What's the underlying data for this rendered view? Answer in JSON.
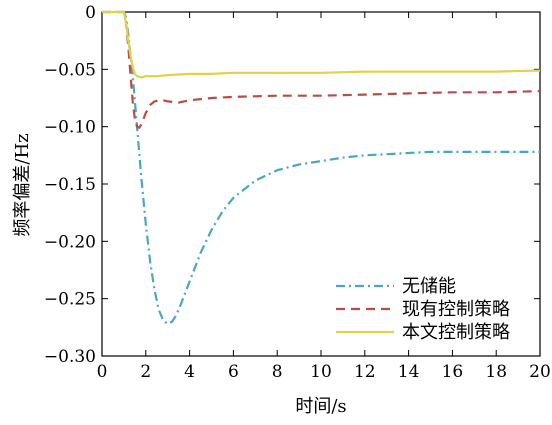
{
  "chart_data": {
    "type": "line",
    "title": "",
    "xlabel": "时间/s",
    "ylabel": "频率偏差/Hz",
    "xlim": [
      0,
      20
    ],
    "ylim": [
      -0.3,
      0
    ],
    "xticks": [
      0,
      2,
      4,
      6,
      8,
      10,
      12,
      14,
      16,
      18,
      20
    ],
    "xtick_labels": [
      "0",
      "2",
      "4",
      "6",
      "8",
      "10",
      "12",
      "14",
      "16",
      "18",
      "20"
    ],
    "yticks": [
      0,
      -0.05,
      -0.1,
      -0.15,
      -0.2,
      -0.25,
      -0.3
    ],
    "ytick_labels": [
      "0",
      "−0.05",
      "−0.10",
      "−0.15",
      "−0.20",
      "−0.25",
      "−0.30"
    ],
    "grid": false,
    "legend_position": "bottom-right",
    "series": [
      {
        "name": "无储能",
        "color": "#4aa6c2",
        "dash": "dash-dot",
        "x": [
          0,
          0.9,
          1.0,
          1.1,
          1.2,
          1.4,
          1.6,
          1.8,
          2.0,
          2.2,
          2.4,
          2.6,
          2.8,
          3.0,
          3.2,
          3.4,
          3.6,
          3.8,
          4.0,
          4.5,
          5.0,
          5.5,
          6.0,
          7.0,
          8.0,
          9.0,
          10.0,
          11.0,
          12.0,
          13.0,
          14.0,
          15.0,
          16.0,
          17.0,
          18.0,
          19.0,
          20.0
        ],
        "y": [
          0,
          0,
          0,
          -0.005,
          -0.02,
          -0.055,
          -0.1,
          -0.145,
          -0.185,
          -0.218,
          -0.243,
          -0.26,
          -0.269,
          -0.272,
          -0.27,
          -0.264,
          -0.255,
          -0.245,
          -0.235,
          -0.21,
          -0.19,
          -0.174,
          -0.162,
          -0.147,
          -0.138,
          -0.133,
          -0.13,
          -0.127,
          -0.125,
          -0.124,
          -0.123,
          -0.122,
          -0.122,
          -0.122,
          -0.122,
          -0.122,
          -0.122
        ]
      },
      {
        "name": "现有控制策略",
        "color": "#b84d46",
        "dash": "dash",
        "x": [
          0,
          0.9,
          1.0,
          1.1,
          1.2,
          1.3,
          1.4,
          1.5,
          1.6,
          1.7,
          1.8,
          2.0,
          2.2,
          2.4,
          2.6,
          2.8,
          3.0,
          3.5,
          4.0,
          5.0,
          6.0,
          8.0,
          10.0,
          12.0,
          14.0,
          16.0,
          18.0,
          20.0
        ],
        "y": [
          0,
          0,
          0,
          -0.01,
          -0.03,
          -0.055,
          -0.078,
          -0.093,
          -0.1,
          -0.101,
          -0.098,
          -0.088,
          -0.081,
          -0.078,
          -0.077,
          -0.077,
          -0.078,
          -0.079,
          -0.077,
          -0.075,
          -0.074,
          -0.073,
          -0.073,
          -0.072,
          -0.071,
          -0.07,
          -0.07,
          -0.069
        ]
      },
      {
        "name": "本文控制策略",
        "color": "#e2d14a",
        "dash": "solid",
        "x": [
          0,
          0.9,
          1.0,
          1.1,
          1.2,
          1.3,
          1.4,
          1.5,
          1.6,
          1.8,
          2.0,
          2.5,
          3.0,
          4.0,
          5.0,
          6.0,
          8.0,
          10.0,
          12.0,
          14.0,
          16.0,
          18.0,
          20.0
        ],
        "y": [
          0,
          0,
          0,
          -0.01,
          -0.025,
          -0.038,
          -0.048,
          -0.054,
          -0.056,
          -0.057,
          -0.056,
          -0.056,
          -0.055,
          -0.054,
          -0.054,
          -0.053,
          -0.053,
          -0.053,
          -0.052,
          -0.052,
          -0.052,
          -0.052,
          -0.051
        ]
      }
    ]
  }
}
